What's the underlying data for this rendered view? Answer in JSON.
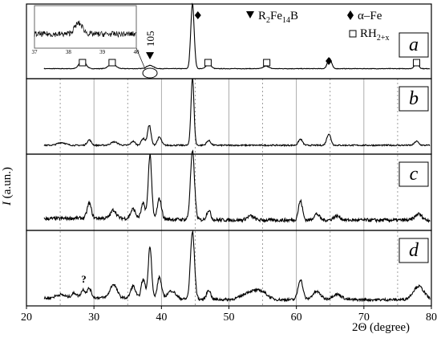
{
  "chart_data": {
    "type": "line",
    "xlabel_text": "2Θ (degree)",
    "ylabel_italic": "I",
    "ylabel_rest": " (a.un.)",
    "xlim": [
      20,
      80
    ],
    "xticks": [
      20,
      30,
      40,
      50,
      60,
      70,
      80
    ],
    "vertical_gridlines_dashed": [
      25,
      35,
      45,
      55,
      65,
      75
    ],
    "vertical_gridlines_solid": [
      30,
      40,
      50,
      60,
      70
    ],
    "panels": [
      {
        "letter": "a",
        "baseline": 0.08,
        "noise": 0.004,
        "peaks": [
          [
            28.3,
            0.14,
            0.45
          ],
          [
            32.7,
            0.08,
            0.5
          ],
          [
            38.3,
            0.05,
            0.5
          ],
          [
            44.6,
            1.0,
            0.25
          ],
          [
            47.0,
            0.08,
            0.35
          ],
          [
            55.5,
            0.04,
            0.4
          ],
          [
            64.9,
            0.16,
            0.3
          ],
          [
            77.8,
            0.09,
            0.3
          ]
        ]
      },
      {
        "letter": "b",
        "baseline": 0.06,
        "noise": 0.01,
        "peaks": [
          [
            25.2,
            0.04,
            0.6
          ],
          [
            29.3,
            0.08,
            0.3
          ],
          [
            33.0,
            0.05,
            0.5
          ],
          [
            35.8,
            0.06,
            0.3
          ],
          [
            37.3,
            0.1,
            0.3
          ],
          [
            38.2,
            0.3,
            0.25
          ],
          [
            39.7,
            0.12,
            0.3
          ],
          [
            44.6,
            1.0,
            0.22
          ],
          [
            47.0,
            0.07,
            0.3
          ],
          [
            60.6,
            0.09,
            0.3
          ],
          [
            64.8,
            0.17,
            0.3
          ],
          [
            77.8,
            0.06,
            0.3
          ]
        ]
      },
      {
        "letter": "c",
        "baseline": 0.08,
        "noise": 0.025,
        "peaks": [
          [
            29.3,
            0.22,
            0.3
          ],
          [
            32.9,
            0.12,
            0.4
          ],
          [
            35.8,
            0.14,
            0.35
          ],
          [
            37.3,
            0.22,
            0.3
          ],
          [
            38.3,
            0.95,
            0.25
          ],
          [
            39.7,
            0.3,
            0.3
          ],
          [
            44.6,
            1.0,
            0.3
          ],
          [
            47.0,
            0.14,
            0.3
          ],
          [
            53.2,
            0.06,
            0.5
          ],
          [
            60.6,
            0.28,
            0.3
          ],
          [
            63.0,
            0.09,
            0.4
          ],
          [
            66.0,
            0.06,
            0.5
          ],
          [
            78.1,
            0.09,
            0.5
          ]
        ]
      },
      {
        "letter": "d",
        "baseline": 0.02,
        "noise": 0.02,
        "peaks": [
          [
            25.0,
            0.05,
            0.7
          ],
          [
            27.1,
            0.07,
            0.4
          ],
          [
            28.4,
            0.12,
            0.3
          ],
          [
            29.3,
            0.14,
            0.3
          ],
          [
            32.9,
            0.2,
            0.5
          ],
          [
            35.8,
            0.18,
            0.35
          ],
          [
            37.3,
            0.28,
            0.3
          ],
          [
            38.3,
            0.78,
            0.25
          ],
          [
            39.7,
            0.32,
            0.3
          ],
          [
            41.5,
            0.12,
            0.6
          ],
          [
            44.6,
            1.0,
            0.3
          ],
          [
            47.0,
            0.14,
            0.3
          ],
          [
            53.3,
            0.12,
            1.2
          ],
          [
            55.0,
            0.08,
            0.8
          ],
          [
            60.6,
            0.3,
            0.35
          ],
          [
            63.0,
            0.12,
            0.6
          ],
          [
            66.0,
            0.08,
            0.7
          ],
          [
            78.1,
            0.2,
            0.8
          ]
        ],
        "annotation_text": "?",
        "annotation_x": 28.5
      }
    ],
    "legend": [
      {
        "symbol": "triangle-down",
        "text": "R",
        "sub1": "2",
        "text2": "Fe",
        "sub2": "14",
        "text3": "B"
      },
      {
        "symbol": "diamond",
        "text": "α–Fe"
      },
      {
        "symbol": "square",
        "text": "RH",
        "sub1": "2+x"
      }
    ],
    "markers_panel_a": {
      "square": [
        28.3,
        32.7,
        46.9,
        55.6,
        77.8
      ],
      "diamond": [
        45.4,
        64.8
      ],
      "triangle": [
        38.3
      ]
    },
    "marker_label_105": "105",
    "inset": {
      "xlim": [
        37,
        40
      ],
      "xticks": [
        37,
        38,
        39,
        40
      ],
      "peak": [
        38.3,
        0.45,
        0.12
      ],
      "noise": 0.12
    }
  }
}
